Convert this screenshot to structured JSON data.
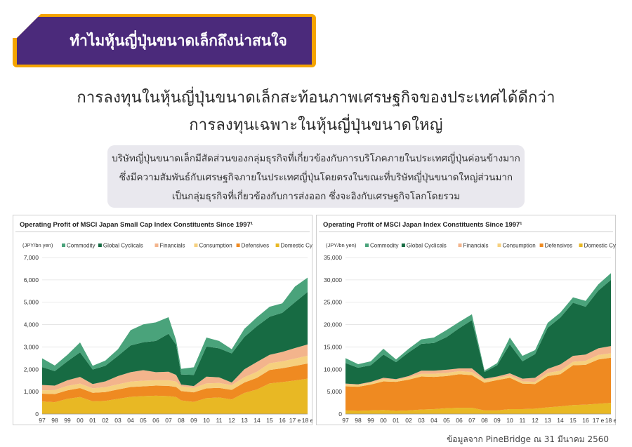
{
  "banner": {
    "title": "ทำไมหุ้นญี่ปุ่นขนาดเล็กถึงน่าสนใจ",
    "bg_color": "#4b2a7b",
    "accent_color": "#f5a400"
  },
  "headline": {
    "line1": "การลงทุนในหุ้นญี่ปุ่นขนาดเล็กสะท้อนภาพเศรษฐกิจของประเทศได้ดีกว่า",
    "line2": "การลงทุนเฉพาะในหุ้นญี่ปุ่นขนาดใหญ่"
  },
  "description": {
    "line1": "บริษัทญี่ปุ่นขนาดเล็กมีสัดส่วนของกลุ่มธุรกิจที่เกี่ยวข้องกับการบริโภคภายในประเทศญี่ปุ่นค่อนข้างมาก",
    "line2": "ซึ่งมีความสัมพันธ์กับเศรษฐกิจภายในประเทศญี่ปุ่นโดยตรงในขณะที่บริษัทญี่ปุ่นขนาดใหญ่ส่วนมาก",
    "line3": "เป็นกลุ่มธุรกิจที่เกี่ยวข้องกับการส่งออก ซึ่งจะอิงกับเศรษฐกิจโลกโดยรวม"
  },
  "footer": {
    "source": "ข้อมูลจาก PineBridge ณ 31 มีนาคม 2560"
  },
  "chart_data": [
    {
      "type": "area",
      "stacked": true,
      "title": "Operating Profit of MSCI Japan Small Cap Index Constituents Since 1997¹",
      "ylabel": "(JPY/bn yen)",
      "ylim": [
        0,
        7000
      ],
      "yticks": [
        0,
        1000,
        2000,
        3000,
        4000,
        5000,
        6000,
        7000
      ],
      "ytick_labels": [
        "0",
        "1,000",
        "2,000",
        "3,000",
        "4,000",
        "5,000",
        "6,000",
        "7,000"
      ],
      "x_labels": [
        "97",
        "98",
        "99",
        "00",
        "01",
        "02",
        "03",
        "04",
        "05",
        "06",
        "07",
        "08",
        "09",
        "10",
        "11",
        "12",
        "13",
        "14",
        "15",
        "16",
        "17 e",
        "18 e"
      ],
      "x": [
        1997,
        1998,
        1999,
        2000,
        2001,
        2002,
        2003,
        2004,
        2005,
        2006,
        2007,
        2007.6,
        2008,
        2009,
        2010,
        2011,
        2012,
        2013,
        2014,
        2015,
        2016,
        2017,
        2018
      ],
      "legend": "top",
      "series": [
        {
          "name": "Domestic Cyclicals",
          "color": "#e8b824",
          "values": [
            560,
            530,
            680,
            760,
            570,
            590,
            680,
            770,
            800,
            820,
            800,
            760,
            610,
            540,
            710,
            740,
            650,
            940,
            1100,
            1370,
            1430,
            1500,
            1580
          ]
        },
        {
          "name": "Defensives",
          "color": "#ef8a21",
          "values": [
            350,
            360,
            380,
            400,
            380,
            390,
            420,
            440,
            440,
            450,
            460,
            450,
            420,
            430,
            440,
            430,
            430,
            470,
            520,
            600,
            620,
            650,
            680
          ]
        },
        {
          "name": "Consumption",
          "color": "#f6d07e",
          "values": [
            150,
            180,
            200,
            200,
            200,
            220,
            230,
            240,
            250,
            240,
            250,
            240,
            210,
            200,
            220,
            220,
            210,
            240,
            270,
            300,
            310,
            330,
            350
          ]
        },
        {
          "name": "Financials",
          "color": "#f3b48c",
          "values": [
            240,
            200,
            250,
            300,
            190,
            260,
            370,
            420,
            470,
            360,
            380,
            300,
            80,
            80,
            300,
            250,
            120,
            350,
            440,
            380,
            420,
            470,
            500
          ]
        },
        {
          "name": "Global Cyclicals",
          "color": "#176b43",
          "values": [
            800,
            650,
            850,
            1100,
            650,
            700,
            900,
            1200,
            1250,
            1400,
            1700,
            1350,
            450,
            500,
            1350,
            1300,
            1300,
            1450,
            1600,
            1700,
            1750,
            2050,
            2350
          ]
        },
        {
          "name": "Commodity",
          "color": "#4aa37b",
          "values": [
            390,
            250,
            290,
            440,
            170,
            230,
            300,
            680,
            800,
            830,
            740,
            200,
            250,
            340,
            400,
            330,
            190,
            360,
            400,
            450,
            420,
            700,
            640
          ]
        }
      ]
    },
    {
      "type": "area",
      "stacked": true,
      "title": "Operating Profit of MSCI Japan Index Constituents Since 1997¹",
      "ylabel": "(JPY/bn yen)",
      "ylim": [
        0,
        35000
      ],
      "yticks": [
        0,
        5000,
        10000,
        15000,
        20000,
        25000,
        30000,
        35000
      ],
      "ytick_labels": [
        "0",
        "5,000",
        "10,000",
        "15,000",
        "20,000",
        "25,000",
        "30,000",
        "35,000"
      ],
      "x_labels": [
        "97",
        "98",
        "99",
        "00",
        "01",
        "02",
        "03",
        "04",
        "05",
        "06",
        "07",
        "08",
        "09",
        "10",
        "11",
        "12",
        "13",
        "14",
        "15",
        "16",
        "17 e",
        "18 e"
      ],
      "x": [
        1997,
        1998,
        1999,
        2000,
        2001,
        2002,
        2003,
        2004,
        2005,
        2006,
        2007,
        2008,
        2009,
        2010,
        2011,
        2012,
        2013,
        2014,
        2015,
        2016,
        2017,
        2018
      ],
      "legend": "top",
      "series": [
        {
          "name": "Domestic Cyclicals",
          "color": "#e8b824",
          "values": [
            800,
            700,
            800,
            900,
            700,
            800,
            1000,
            1100,
            1300,
            1400,
            1400,
            800,
            800,
            1100,
            1100,
            1200,
            1500,
            1700,
            2000,
            2100,
            2300,
            2500
          ]
        },
        {
          "name": "Defensives",
          "color": "#ef8a21",
          "values": [
            5400,
            5400,
            5800,
            6400,
            6500,
            6900,
            7400,
            7200,
            7200,
            7500,
            7300,
            6200,
            6800,
            7000,
            5700,
            5500,
            7000,
            7200,
            8900,
            8900,
            9900,
            10100
          ]
        },
        {
          "name": "Consumption",
          "color": "#f6d07e",
          "values": [
            400,
            400,
            400,
            500,
            400,
            500,
            600,
            700,
            700,
            700,
            700,
            600,
            500,
            500,
            500,
            500,
            700,
            800,
            800,
            900,
            1000,
            1000
          ]
        },
        {
          "name": "Financials",
          "color": "#f3b48c",
          "values": [
            200,
            150,
            200,
            300,
            200,
            300,
            700,
            700,
            700,
            600,
            800,
            300,
            300,
            500,
            600,
            900,
            900,
            1400,
            1300,
            1400,
            1500,
            1600
          ]
        },
        {
          "name": "Global Cyclicals",
          "color": "#176b43",
          "values": [
            4600,
            3700,
            3700,
            5200,
            3800,
            5300,
            6000,
            6200,
            7300,
            9000,
            10800,
            1500,
            2500,
            6500,
            3900,
            5300,
            9200,
            10500,
            11900,
            10700,
            12900,
            14800
          ]
        },
        {
          "name": "Commodity",
          "color": "#4aa37b",
          "values": [
            1100,
            800,
            900,
            1300,
            600,
            800,
            1000,
            1200,
            1600,
            1400,
            1300,
            300,
            500,
            1500,
            1200,
            900,
            1100,
            1100,
            1200,
            1300,
            1400,
            1500
          ]
        }
      ]
    }
  ]
}
